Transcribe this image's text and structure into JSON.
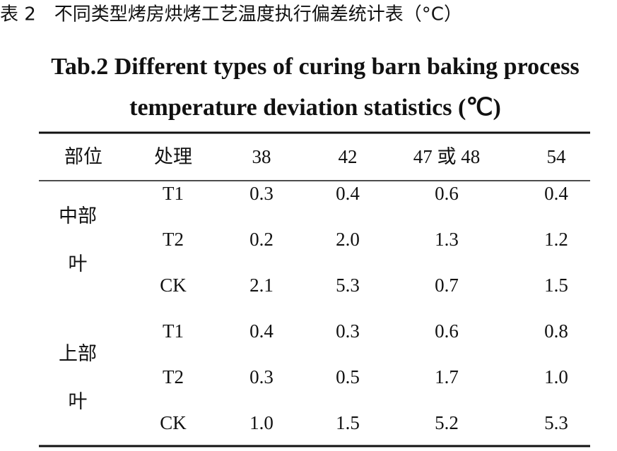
{
  "header": {
    "title": "表 2　不同类型烤房烘烤工艺温度执行偏差统计表（°C）",
    "title_en": [
      "Tab.2 Different types of curing barn baking process",
      "temperature deviation statistics (℃)"
    ]
  },
  "table": {
    "columns": [
      "部位",
      "处理",
      "38",
      "42",
      "47 或 48",
      "54"
    ],
    "groups": [
      {
        "label": [
          "中部",
          "叶"
        ],
        "rows": [
          [
            "T1",
            "0.3",
            "0.4",
            "0.6",
            "0.4"
          ],
          [
            "T2",
            "0.2",
            "2.0",
            "1.3",
            "1.2"
          ],
          [
            "CK",
            "2.1",
            "5.3",
            "0.7",
            "1.5"
          ]
        ]
      },
      {
        "label": [
          "上部",
          "叶"
        ],
        "rows": [
          [
            "T1",
            "0.4",
            "0.3",
            "0.6",
            "0.8"
          ],
          [
            "T2",
            "0.3",
            "0.5",
            "1.7",
            "1.0"
          ],
          [
            "CK",
            "1.0",
            "1.5",
            "5.2",
            "5.3"
          ]
        ]
      }
    ]
  }
}
